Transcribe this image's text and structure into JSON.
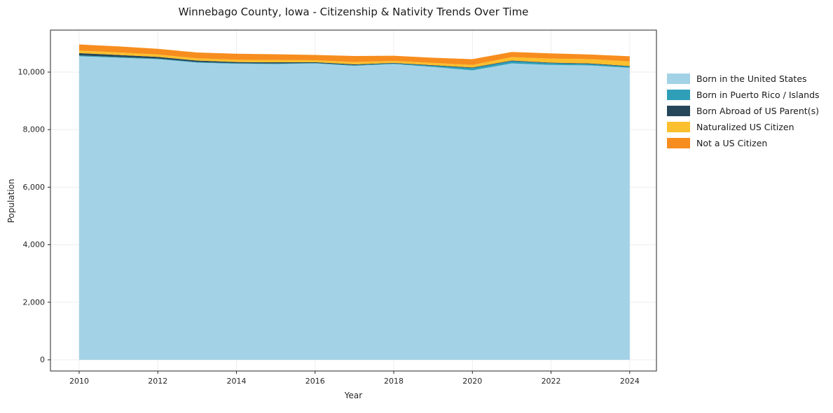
{
  "chart_data": {
    "type": "area",
    "stacked": true,
    "title": "Winnebago County, Iowa - Citizenship & Nativity Trends Over Time",
    "xlabel": "Year",
    "ylabel": "Population",
    "x": [
      2010,
      2011,
      2012,
      2013,
      2014,
      2015,
      2016,
      2017,
      2018,
      2019,
      2020,
      2021,
      2022,
      2023,
      2024
    ],
    "series": [
      {
        "name": "Born in the United States",
        "color": "#a3d2e7",
        "values": [
          10550,
          10500,
          10450,
          10330,
          10290,
          10280,
          10300,
          10220,
          10280,
          10180,
          10060,
          10300,
          10250,
          10230,
          10150
        ]
      },
      {
        "name": "Born in Puerto Rico / Islands",
        "color": "#2f9fb8",
        "values": [
          30,
          25,
          20,
          20,
          20,
          20,
          15,
          20,
          20,
          40,
          80,
          80,
          60,
          50,
          40
        ]
      },
      {
        "name": "Born Abroad of US Parent(s)",
        "color": "#26475a",
        "values": [
          80,
          70,
          60,
          50,
          40,
          40,
          30,
          30,
          20,
          20,
          20,
          20,
          20,
          20,
          20
        ]
      },
      {
        "name": "Naturalized US Citizen",
        "color": "#fcbf2d",
        "values": [
          90,
          90,
          80,
          80,
          80,
          80,
          70,
          80,
          70,
          80,
          90,
          120,
          140,
          150,
          160
        ]
      },
      {
        "name": "Not a US Citizen",
        "color": "#f78d1e",
        "values": [
          210,
          210,
          200,
          200,
          210,
          200,
          180,
          210,
          180,
          180,
          200,
          180,
          180,
          160,
          180
        ]
      }
    ],
    "xticks": [
      2010,
      2012,
      2014,
      2016,
      2018,
      2020,
      2022,
      2024
    ],
    "yticks": [
      0,
      2000,
      4000,
      6000,
      8000,
      10000
    ],
    "xlim": [
      2009.27,
      2024.68
    ],
    "ylim": [
      -390,
      11460
    ],
    "grid": true,
    "legend_position": "right",
    "background": "#ffffff",
    "axis_color": "#262626"
  }
}
